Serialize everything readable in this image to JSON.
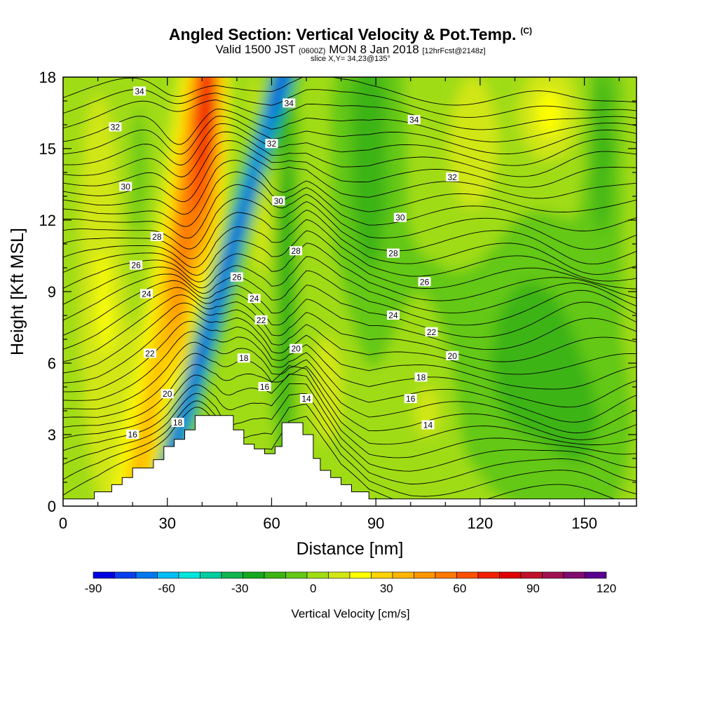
{
  "header": {
    "title": "Angled Section: Vertical Velocity & Pot.Temp.",
    "title_mark": "(C)",
    "valid_prefix": "Valid 1500 JST",
    "valid_zulu": "(0600Z)",
    "valid_date": "MON 8 Jan 2018",
    "valid_fcst": "[12hrFcst@2148z]",
    "slice": "slice X,Y= 34,23@135°"
  },
  "chart_data": {
    "type": "heatmap",
    "xlabel": "Distance [nm]",
    "ylabel": "Height [Kft MSL]",
    "xlim": [
      0,
      165
    ],
    "ylim": [
      0,
      18
    ],
    "x_ticks": [
      "0",
      "30",
      "60",
      "90",
      "120",
      "150"
    ],
    "x_tick_values": [
      0,
      30,
      60,
      90,
      120,
      150
    ],
    "y_ticks": [
      "0",
      "3",
      "6",
      "9",
      "12",
      "15",
      "18"
    ],
    "y_tick_values": [
      0,
      3,
      6,
      9,
      12,
      15,
      18
    ],
    "colorbar": {
      "label": "Vertical Velocity [cm/s]",
      "range": [
        -90,
        120
      ],
      "step": 10,
      "tick_labels": [
        "-90",
        "-60",
        "-30",
        "0",
        "30",
        "60",
        "90",
        "120"
      ],
      "tick_values": [
        -90,
        -60,
        -30,
        0,
        30,
        60,
        90,
        120
      ],
      "colors": [
        "#0000e0",
        "#0a3cf0",
        "#0078f0",
        "#00bef5",
        "#00e6dc",
        "#00cca0",
        "#10b450",
        "#14a81e",
        "#3cb414",
        "#64c814",
        "#a0dc14",
        "#d2e614",
        "#ffff00",
        "#ffd200",
        "#ffb400",
        "#ff9600",
        "#ff7800",
        "#ff5000",
        "#f02000",
        "#e00000",
        "#c0102a",
        "#a01050",
        "#800a6e",
        "#5a0090"
      ]
    },
    "theta_labels": [
      {
        "text": "34",
        "x": 22,
        "y": 17.4
      },
      {
        "text": "32",
        "x": 15,
        "y": 15.9
      },
      {
        "text": "30",
        "x": 18,
        "y": 13.4
      },
      {
        "text": "28",
        "x": 27,
        "y": 11.3
      },
      {
        "text": "26",
        "x": 21,
        "y": 10.1
      },
      {
        "text": "24",
        "x": 24,
        "y": 8.9
      },
      {
        "text": "22",
        "x": 25,
        "y": 6.4
      },
      {
        "text": "20",
        "x": 30,
        "y": 4.7
      },
      {
        "text": "18",
        "x": 33,
        "y": 3.5
      },
      {
        "text": "16",
        "x": 20,
        "y": 3.0
      },
      {
        "text": "34",
        "x": 65,
        "y": 16.9
      },
      {
        "text": "32",
        "x": 60,
        "y": 15.2
      },
      {
        "text": "30",
        "x": 62,
        "y": 12.8
      },
      {
        "text": "28",
        "x": 67,
        "y": 10.7
      },
      {
        "text": "26",
        "x": 50,
        "y": 9.6
      },
      {
        "text": "24",
        "x": 55,
        "y": 8.7
      },
      {
        "text": "22",
        "x": 57,
        "y": 7.8
      },
      {
        "text": "20",
        "x": 67,
        "y": 6.6
      },
      {
        "text": "18",
        "x": 52,
        "y": 6.2
      },
      {
        "text": "16",
        "x": 58,
        "y": 5.0
      },
      {
        "text": "14",
        "x": 70,
        "y": 4.5
      },
      {
        "text": "34",
        "x": 101,
        "y": 16.2
      },
      {
        "text": "32",
        "x": 112,
        "y": 13.8
      },
      {
        "text": "30",
        "x": 97,
        "y": 12.1
      },
      {
        "text": "28",
        "x": 95,
        "y": 10.6
      },
      {
        "text": "26",
        "x": 104,
        "y": 9.4
      },
      {
        "text": "24",
        "x": 95,
        "y": 8.0
      },
      {
        "text": "22",
        "x": 106,
        "y": 7.3
      },
      {
        "text": "20",
        "x": 112,
        "y": 6.3
      },
      {
        "text": "18",
        "x": 103,
        "y": 5.4
      },
      {
        "text": "16",
        "x": 100,
        "y": 4.5
      },
      {
        "text": "14",
        "x": 105,
        "y": 3.4
      }
    ],
    "terrain": [
      [
        0,
        0.3
      ],
      [
        9,
        0.3
      ],
      [
        9,
        0.6
      ],
      [
        14,
        0.6
      ],
      [
        14,
        0.9
      ],
      [
        17,
        0.9
      ],
      [
        17,
        1.2
      ],
      [
        20,
        1.2
      ],
      [
        20,
        1.6
      ],
      [
        26,
        1.6
      ],
      [
        26,
        1.95
      ],
      [
        29,
        1.95
      ],
      [
        29,
        2.5
      ],
      [
        32,
        2.5
      ],
      [
        32,
        2.8
      ],
      [
        35,
        2.8
      ],
      [
        35,
        3.2
      ],
      [
        38,
        3.2
      ],
      [
        38,
        3.8
      ],
      [
        49,
        3.8
      ],
      [
        49,
        3.2
      ],
      [
        52,
        3.2
      ],
      [
        52,
        2.6
      ],
      [
        55,
        2.6
      ],
      [
        55,
        2.4
      ],
      [
        58,
        2.4
      ],
      [
        58,
        2.2
      ],
      [
        61,
        2.2
      ],
      [
        61,
        2.5
      ],
      [
        63,
        2.5
      ],
      [
        63,
        3.5
      ],
      [
        69,
        3.5
      ],
      [
        69,
        3.0
      ],
      [
        72,
        3.0
      ],
      [
        72,
        2.0
      ],
      [
        74,
        2.0
      ],
      [
        74,
        1.5
      ],
      [
        77,
        1.5
      ],
      [
        77,
        1.2
      ],
      [
        80,
        1.2
      ],
      [
        80,
        0.9
      ],
      [
        83,
        0.9
      ],
      [
        83,
        0.6
      ],
      [
        88,
        0.6
      ],
      [
        88,
        0.3
      ],
      [
        165,
        0.3
      ]
    ]
  }
}
